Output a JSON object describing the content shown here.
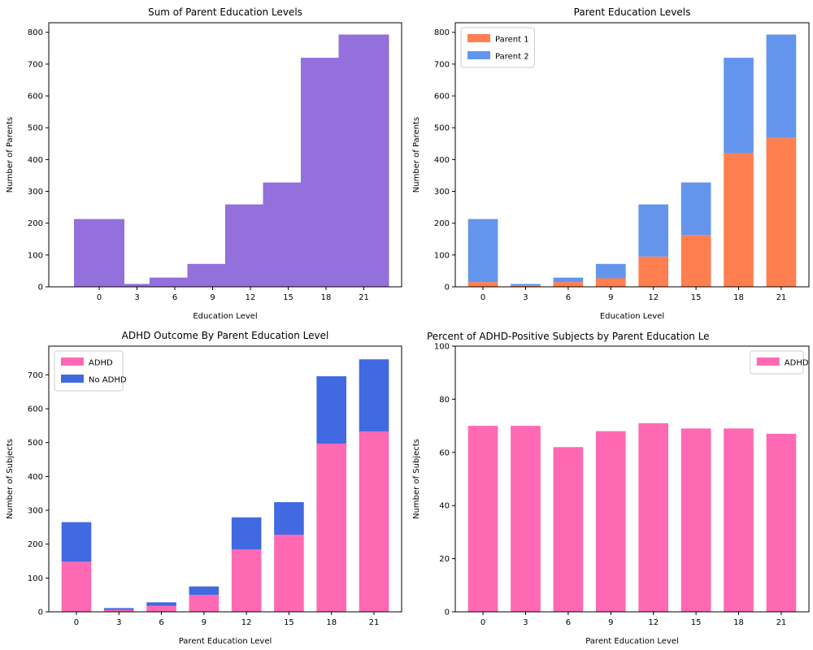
{
  "chart_data": [
    {
      "type": "bar",
      "title": "Sum of Parent Education Levels",
      "xlabel": "Education Level",
      "ylabel": "Number of Parents",
      "ylim": [
        0,
        830
      ],
      "yticks": [
        0,
        100,
        200,
        300,
        400,
        500,
        600,
        700,
        800
      ],
      "xticks": [
        0,
        3,
        6,
        9,
        12,
        15,
        18,
        21
      ],
      "xlim": [
        -4,
        24
      ],
      "bins": [
        {
          "from": -2,
          "to": 2,
          "value": 213
        },
        {
          "from": 2,
          "to": 4,
          "value": 9
        },
        {
          "from": 4,
          "to": 7,
          "value": 29
        },
        {
          "from": 7,
          "to": 10,
          "value": 72
        },
        {
          "from": 10,
          "to": 13,
          "value": 259
        },
        {
          "from": 13,
          "to": 16,
          "value": 328
        },
        {
          "from": 16,
          "to": 19,
          "value": 720
        },
        {
          "from": 19,
          "to": 23,
          "value": 793
        }
      ],
      "colors": [
        "#9370db"
      ],
      "grid": false,
      "legend": null
    },
    {
      "type": "bar",
      "stacked": true,
      "title": "Parent Education Levels",
      "xlabel": "Education Level",
      "ylabel": "Number of Parents",
      "ylim": [
        0,
        830
      ],
      "yticks": [
        0,
        100,
        200,
        300,
        400,
        500,
        600,
        700,
        800
      ],
      "categories": [
        "0",
        "3",
        "6",
        "9",
        "12",
        "15",
        "18",
        "21"
      ],
      "series": [
        {
          "name": "Parent 1",
          "values": [
            15,
            4,
            15,
            27,
            95,
            163,
            420,
            468
          ],
          "color": "#ff7f50"
        },
        {
          "name": "Parent 2",
          "values": [
            198,
            5,
            14,
            45,
            164,
            165,
            300,
            325
          ],
          "color": "#6495ed"
        }
      ],
      "grid": false,
      "legend": "top-left"
    },
    {
      "type": "bar",
      "stacked": true,
      "title": "ADHD Outcome By Parent Education Level",
      "xlabel": "Parent Education Level",
      "ylabel": "Number of Subjects",
      "ylim": [
        0,
        785
      ],
      "yticks": [
        0,
        100,
        200,
        300,
        400,
        500,
        600,
        700
      ],
      "categories": [
        "0",
        "3",
        "6",
        "9",
        "12",
        "15",
        "18",
        "21"
      ],
      "series": [
        {
          "name": "ADHD",
          "values": [
            148,
            6,
            18,
            50,
            184,
            228,
            497,
            533
          ],
          "color": "#ff69b4"
        },
        {
          "name": "No ADHD",
          "values": [
            117,
            5,
            10,
            25,
            95,
            96,
            199,
            213
          ],
          "color": "#4169e1"
        }
      ],
      "grid": false,
      "legend": "top-left"
    },
    {
      "type": "bar",
      "title": "Percent of ADHD-Positive Subjects by Parent Education Le",
      "xlabel": "Parent Education Level",
      "ylabel": "Number of Subjects",
      "ylim": [
        0,
        100
      ],
      "yticks": [
        0,
        20,
        40,
        60,
        80,
        100
      ],
      "categories": [
        "0",
        "3",
        "6",
        "9",
        "12",
        "15",
        "18",
        "21"
      ],
      "series": [
        {
          "name": "ADHD",
          "values": [
            70,
            70,
            62,
            68,
            71,
            69,
            69,
            67
          ],
          "color": "#ff69b4"
        }
      ],
      "grid": false,
      "legend": "top-right"
    }
  ]
}
